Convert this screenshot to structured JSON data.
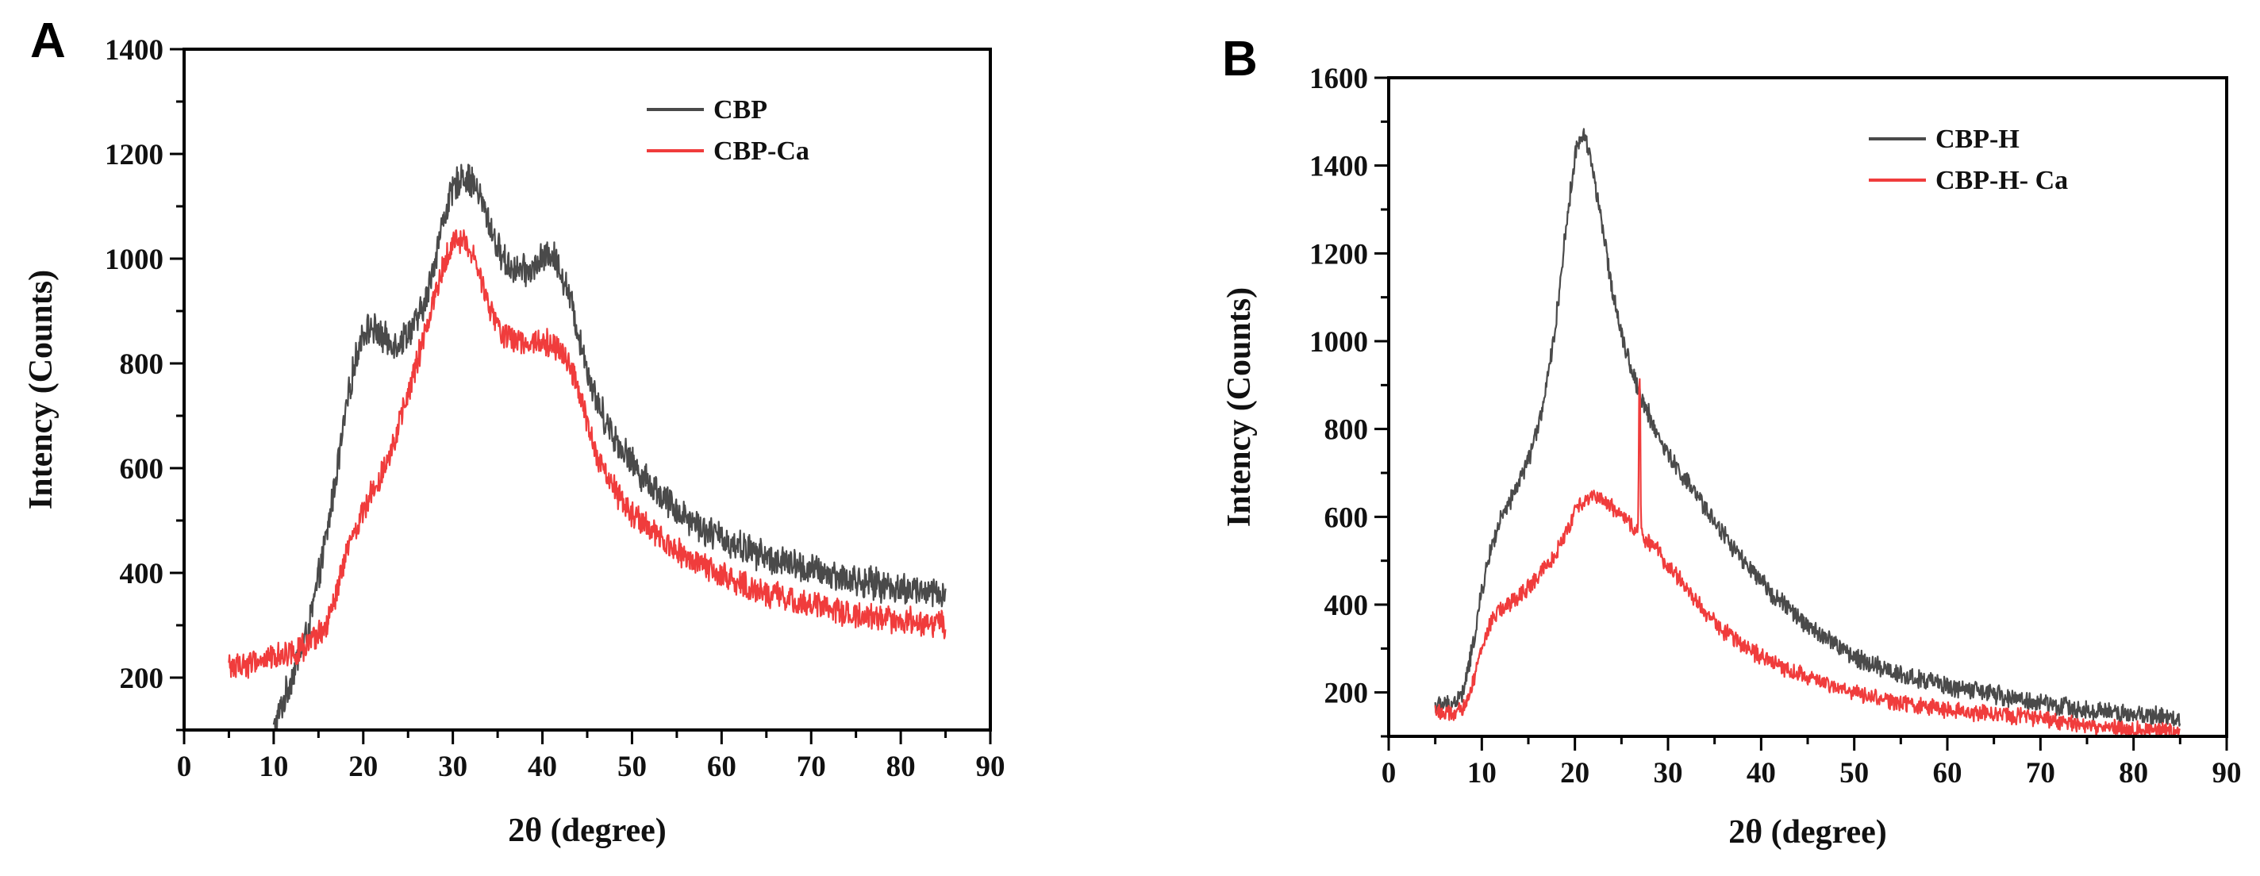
{
  "chart_data": [
    {
      "type": "line",
      "panel_label": "A",
      "xlabel": "2θ (degree)",
      "ylabel": "Intency (Counts)",
      "xlim": [
        0,
        90
      ],
      "ylim": [
        100,
        1400
      ],
      "xticks": [
        0,
        10,
        20,
        30,
        40,
        50,
        60,
        70,
        80,
        90
      ],
      "yticks": [
        200,
        400,
        600,
        800,
        1000,
        1200,
        1400
      ],
      "grid": false,
      "legend_position": "top-right",
      "series": [
        {
          "name": "CBP",
          "color": "#4a4a4a",
          "noise": 35,
          "x": [
            10,
            12,
            14,
            16,
            18,
            19,
            20,
            21,
            22,
            23,
            24,
            25,
            26,
            27,
            28,
            29,
            30,
            31,
            32,
            33,
            34,
            35,
            36,
            37,
            38,
            39,
            40,
            41,
            42,
            43,
            44,
            45,
            46,
            48,
            50,
            52,
            55,
            58,
            60,
            65,
            70,
            75,
            80,
            85
          ],
          "y": [
            100,
            200,
            300,
            480,
            700,
            800,
            860,
            870,
            850,
            840,
            840,
            860,
            880,
            920,
            1000,
            1080,
            1130,
            1160,
            1150,
            1120,
            1070,
            1020,
            990,
            980,
            975,
            980,
            1000,
            1010,
            980,
            930,
            860,
            790,
            730,
            660,
            610,
            570,
            520,
            485,
            465,
            430,
            405,
            385,
            370,
            360
          ]
        },
        {
          "name": "CBP-Ca",
          "color": "#f03c3c",
          "noise": 30,
          "x": [
            5,
            8,
            10,
            12,
            14,
            16,
            17,
            18,
            20,
            22,
            24,
            26,
            28,
            29,
            30,
            31,
            32,
            33,
            34,
            35,
            36,
            38,
            40,
            42,
            43,
            44,
            45,
            46,
            48,
            50,
            52,
            55,
            58,
            60,
            65,
            70,
            75,
            80,
            85
          ],
          "y": [
            220,
            230,
            240,
            250,
            260,
            300,
            360,
            430,
            520,
            590,
            680,
            800,
            930,
            990,
            1030,
            1040,
            1010,
            970,
            910,
            870,
            850,
            840,
            845,
            830,
            800,
            750,
            690,
            620,
            560,
            510,
            480,
            440,
            410,
            395,
            360,
            340,
            320,
            310,
            300
          ]
        }
      ]
    },
    {
      "type": "line",
      "panel_label": "B",
      "xlabel": "2θ (degree)",
      "ylabel": "Intency (Counts)",
      "xlim": [
        0,
        90
      ],
      "ylim": [
        100,
        1600
      ],
      "xticks": [
        0,
        10,
        20,
        30,
        40,
        50,
        60,
        70,
        80,
        90
      ],
      "yticks": [
        200,
        400,
        600,
        800,
        1000,
        1200,
        1400,
        1600
      ],
      "grid": false,
      "legend_position": "top-right",
      "series": [
        {
          "name": "CBP-H",
          "color": "#4a4a4a",
          "noise": 25,
          "x": [
            5,
            6,
            7,
            8,
            9,
            10,
            11,
            12,
            13,
            14,
            15,
            16,
            17,
            18,
            19,
            20,
            20.5,
            21,
            21.5,
            22,
            23,
            24,
            25,
            26,
            27,
            28,
            29,
            30,
            32,
            34,
            36,
            38,
            40,
            42,
            45,
            48,
            50,
            55,
            60,
            65,
            70,
            75,
            80,
            85
          ],
          "y": [
            170,
            170,
            175,
            200,
            300,
            430,
            530,
            590,
            630,
            680,
            730,
            800,
            900,
            1050,
            1250,
            1420,
            1460,
            1470,
            1440,
            1380,
            1250,
            1120,
            1020,
            940,
            880,
            830,
            780,
            740,
            680,
            620,
            560,
            500,
            450,
            410,
            350,
            310,
            280,
            240,
            215,
            195,
            175,
            160,
            150,
            140
          ]
        },
        {
          "name": "CBP-H- Ca",
          "color": "#f03c3c",
          "noise": 22,
          "x": [
            5,
            6,
            7,
            8,
            9,
            10,
            11,
            12,
            13,
            14,
            15,
            16,
            17,
            18,
            19,
            20,
            21,
            22,
            23,
            24,
            25,
            26,
            26.8,
            26.9,
            27,
            27.1,
            27.2,
            28,
            29,
            30,
            32,
            34,
            36,
            38,
            40,
            42,
            45,
            48,
            50,
            55,
            60,
            65,
            70,
            75,
            80,
            85
          ],
          "y": [
            160,
            150,
            150,
            160,
            220,
            300,
            360,
            390,
            400,
            420,
            440,
            460,
            490,
            520,
            560,
            610,
            640,
            650,
            640,
            620,
            600,
            580,
            570,
            900,
            900,
            560,
            560,
            540,
            520,
            490,
            440,
            380,
            340,
            310,
            280,
            260,
            235,
            210,
            200,
            175,
            160,
            150,
            140,
            125,
            115,
            110
          ]
        }
      ]
    }
  ]
}
